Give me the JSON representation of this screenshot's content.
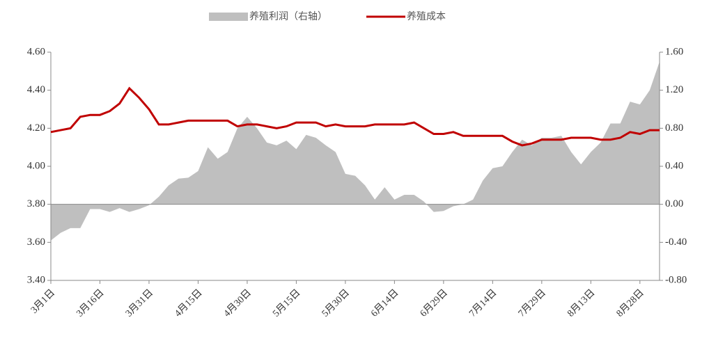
{
  "chart_data": {
    "type": "dual-axis",
    "categories": [
      "3月1日",
      null,
      null,
      null,
      null,
      "3月16日",
      null,
      null,
      null,
      null,
      "3月31日",
      null,
      null,
      null,
      null,
      "4月15日",
      null,
      null,
      null,
      null,
      "4月30日",
      null,
      null,
      null,
      null,
      "5月15日",
      null,
      null,
      null,
      null,
      "5月30日",
      null,
      null,
      null,
      null,
      "6月14日",
      null,
      null,
      null,
      null,
      "6月29日",
      null,
      null,
      null,
      null,
      "7月14日",
      null,
      null,
      null,
      null,
      "7月29日",
      null,
      null,
      null,
      null,
      "8月13日",
      null,
      null,
      null,
      null,
      "8月28日",
      null,
      null
    ],
    "series": [
      {
        "name": "养殖利润（右轴）",
        "type": "area",
        "axis": "y2",
        "color": "#bfbfbf",
        "values": [
          -0.38,
          -0.3,
          -0.25,
          -0.25,
          -0.05,
          -0.05,
          -0.08,
          -0.04,
          -0.08,
          -0.05,
          -0.01,
          0.08,
          0.2,
          0.27,
          0.28,
          0.35,
          0.6,
          0.48,
          0.55,
          0.8,
          0.92,
          0.8,
          0.65,
          0.62,
          0.67,
          0.58,
          0.73,
          0.7,
          0.62,
          0.55,
          0.32,
          0.3,
          0.2,
          0.05,
          0.18,
          0.05,
          0.1,
          0.1,
          0.03,
          -0.08,
          -0.07,
          -0.02,
          0.0,
          0.05,
          0.25,
          0.38,
          0.4,
          0.55,
          0.68,
          0.62,
          0.7,
          0.7,
          0.72,
          0.55,
          0.42,
          0.55,
          0.65,
          0.85,
          0.85,
          1.08,
          1.05,
          1.2,
          1.5
        ]
      },
      {
        "name": "养殖成本",
        "type": "line",
        "color": "#c00000",
        "values": [
          4.18,
          4.19,
          4.2,
          4.26,
          4.27,
          4.27,
          4.29,
          4.33,
          4.41,
          4.36,
          4.3,
          4.22,
          4.22,
          4.23,
          4.24,
          4.24,
          4.24,
          4.24,
          4.24,
          4.21,
          4.22,
          4.22,
          4.21,
          4.2,
          4.21,
          4.23,
          4.23,
          4.23,
          4.21,
          4.22,
          4.21,
          4.21,
          4.21,
          4.22,
          4.22,
          4.22,
          4.22,
          4.23,
          4.2,
          4.17,
          4.17,
          4.18,
          4.16,
          4.16,
          4.16,
          4.16,
          4.16,
          4.13,
          4.11,
          4.12,
          4.14,
          4.14,
          4.14,
          4.15,
          4.15,
          4.15,
          4.14,
          4.14,
          4.15,
          4.18,
          4.17,
          4.19,
          4.19
        ]
      }
    ],
    "ylim": [
      3.4,
      4.6
    ],
    "yticks": [
      {
        "value": 3.4,
        "label": "3.40"
      },
      {
        "value": 3.6,
        "label": "3.60"
      },
      {
        "value": 3.8,
        "label": "3.80"
      },
      {
        "value": 4.0,
        "label": "4.00"
      },
      {
        "value": 4.2,
        "label": "4.20"
      },
      {
        "value": 4.4,
        "label": "4.40"
      },
      {
        "value": 4.6,
        "label": "4.60"
      }
    ],
    "y2lim": [
      -0.8,
      1.6
    ],
    "y2ticks": [
      {
        "value": -0.8,
        "label": "-0.80"
      },
      {
        "value": -0.4,
        "label": "-0.40"
      },
      {
        "value": 0,
        "label": "0.00"
      },
      {
        "value": 0.4,
        "label": "0.40"
      },
      {
        "value": 0.8,
        "label": "0.80"
      },
      {
        "value": 1.2,
        "label": "1.20"
      },
      {
        "value": 1.6,
        "label": "1.60"
      }
    ]
  }
}
